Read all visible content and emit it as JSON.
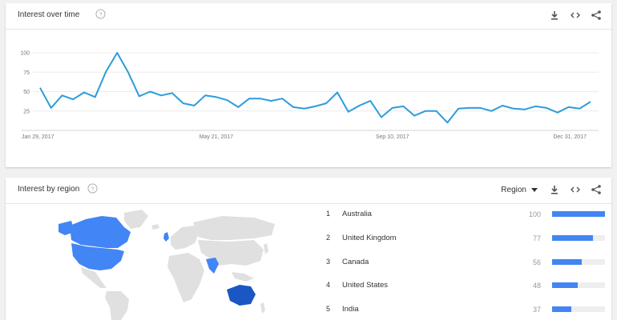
{
  "time_card": {
    "title": "Interest over time",
    "icons": [
      "help-icon",
      "download-icon",
      "embed-icon",
      "share-icon"
    ]
  },
  "region_card": {
    "title": "Interest by region",
    "resolution_label": "Region",
    "icons": [
      "help-icon",
      "download-icon",
      "embed-icon",
      "share-icon"
    ],
    "regions": [
      {
        "rank": "1",
        "name": "Australia",
        "value": "100",
        "fraction": 1.0
      },
      {
        "rank": "2",
        "name": "United Kingdom",
        "value": "77",
        "fraction": 0.77
      },
      {
        "rank": "3",
        "name": "Canada",
        "value": "56",
        "fraction": 0.56
      },
      {
        "rank": "4",
        "name": "United States",
        "value": "48",
        "fraction": 0.48
      },
      {
        "rank": "5",
        "name": "India",
        "value": "37",
        "fraction": 0.37
      }
    ]
  },
  "colors": {
    "accent": "#4285f4",
    "line": "#2d9cdb",
    "map_base": "#e0e0e0",
    "map_highlight": "#4285f4"
  },
  "chart_data": {
    "type": "line",
    "title": "",
    "xlabel": "",
    "ylabel": "",
    "ylim": [
      0,
      100
    ],
    "y_ticks": [
      "25",
      "50",
      "75",
      "100"
    ],
    "x_tick_labels": [
      "Jan 29, 2017",
      "May 21, 2017",
      "Sep 10, 2017",
      "Dec 31, 2017"
    ],
    "x_tick_indices": [
      0,
      16,
      32,
      48
    ],
    "grid": true,
    "series": [
      {
        "values": [
          55,
          29,
          45,
          40,
          49,
          43,
          76,
          100,
          75,
          44,
          50,
          45,
          48,
          35,
          32,
          45,
          43,
          39,
          30,
          41,
          41,
          38,
          41,
          30,
          28,
          31,
          35,
          49,
          24,
          32,
          38,
          17,
          29,
          31,
          19,
          25,
          25,
          10,
          28,
          29,
          29,
          25,
          32,
          28,
          27,
          31,
          29,
          23,
          30,
          28,
          37
        ]
      }
    ]
  }
}
